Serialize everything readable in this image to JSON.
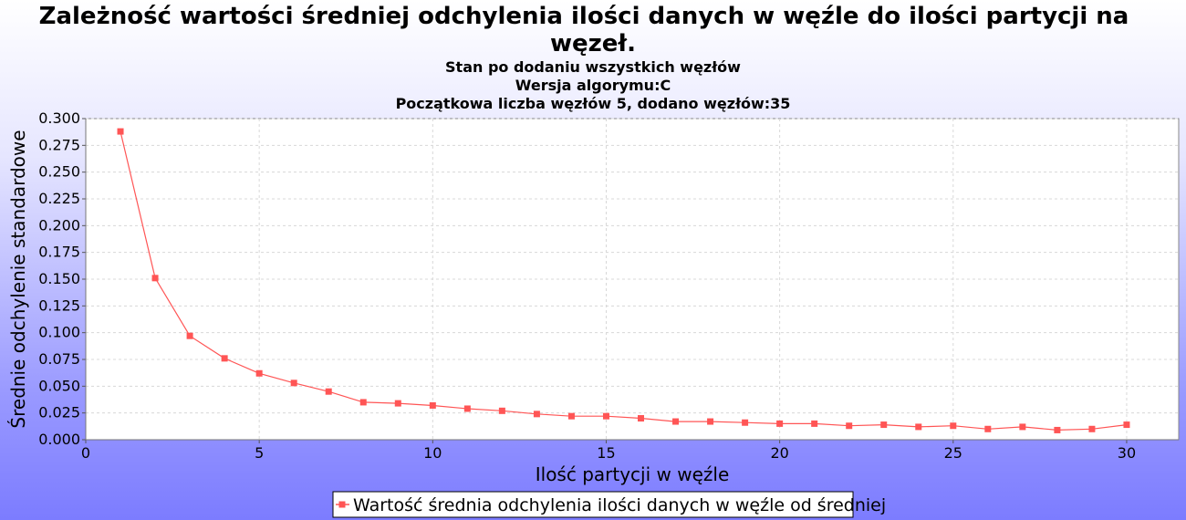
{
  "chart_data": {
    "type": "line",
    "title_lines": [
      "Zależność wartości średniej odchylenia ilości danych w węźle do ilości partycji na",
      "węzeł."
    ],
    "subtitles": [
      "Stan po dodaniu wszystkich węzłów",
      "Wersja algorymu:C",
      "Początkowa liczba węzłów 5, dodano węzłów:35"
    ],
    "xlabel": "Ilość partycji w węźle",
    "ylabel": "Średnie odchylenie standardowe",
    "xlim": [
      0,
      31.5
    ],
    "ylim": [
      0,
      0.3
    ],
    "xticks": [
      0,
      5,
      10,
      15,
      20,
      25,
      30
    ],
    "xtick_labels": [
      "0",
      "5",
      "10",
      "15",
      "20",
      "25",
      "30"
    ],
    "yticks": [
      0,
      0.025,
      0.05,
      0.075,
      0.1,
      0.125,
      0.15,
      0.175,
      0.2,
      0.225,
      0.25,
      0.275,
      0.3
    ],
    "ytick_labels": [
      "0.000",
      "0.025",
      "0.050",
      "0.075",
      "0.100",
      "0.125",
      "0.150",
      "0.175",
      "0.200",
      "0.225",
      "0.250",
      "0.275",
      "0.300"
    ],
    "grid": true,
    "legend_position": "bottom-center",
    "series": [
      {
        "name": "Wartość średnia odchylenia ilości danych w węźle od średniej",
        "color": "#ff5555",
        "marker": "square",
        "x": [
          1,
          2,
          3,
          4,
          5,
          6,
          7,
          8,
          9,
          10,
          11,
          12,
          13,
          14,
          15,
          16,
          17,
          18,
          19,
          20,
          21,
          22,
          23,
          24,
          25,
          26,
          27,
          28,
          29,
          30
        ],
        "y": [
          0.288,
          0.151,
          0.097,
          0.076,
          0.062,
          0.053,
          0.045,
          0.035,
          0.034,
          0.032,
          0.029,
          0.027,
          0.024,
          0.022,
          0.022,
          0.02,
          0.017,
          0.017,
          0.016,
          0.015,
          0.015,
          0.013,
          0.014,
          0.012,
          0.013,
          0.01,
          0.012,
          0.009,
          0.01,
          0.014
        ]
      }
    ]
  }
}
